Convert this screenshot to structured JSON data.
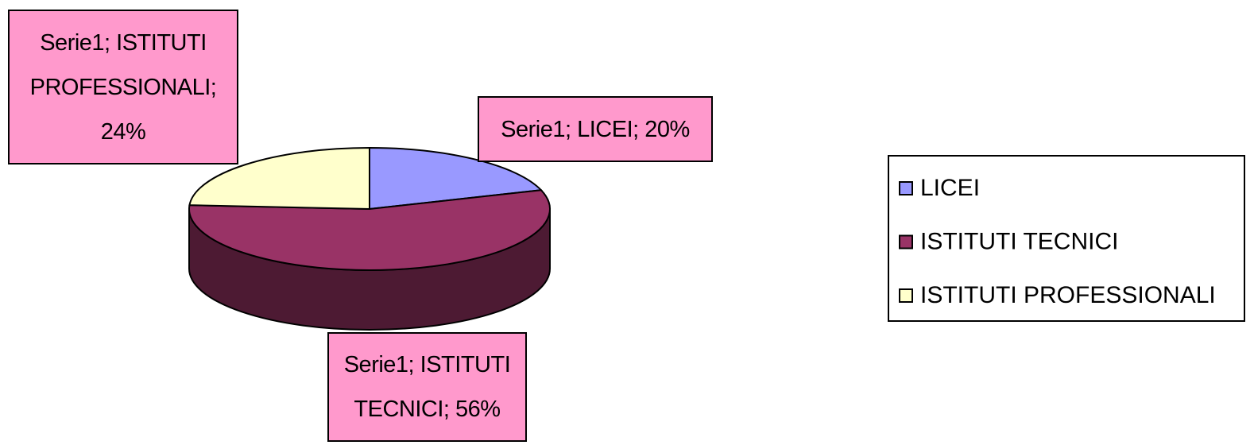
{
  "chart_data": {
    "type": "pie",
    "three_d": true,
    "categories": [
      "LICEI",
      "ISTITUTI TECNICI",
      "ISTITUTI PROFESSIONALI"
    ],
    "values": [
      20,
      56,
      24
    ],
    "value_labels": [
      "Serie1; LICEI; 20%",
      "Serie1; ISTITUTI TECNICI; 56%",
      "Serie1; ISTITUTI PROFESSIONALI; 24%"
    ],
    "colors": [
      "#9999ff",
      "#993366",
      "#ffffcc"
    ],
    "legend": "right"
  }
}
